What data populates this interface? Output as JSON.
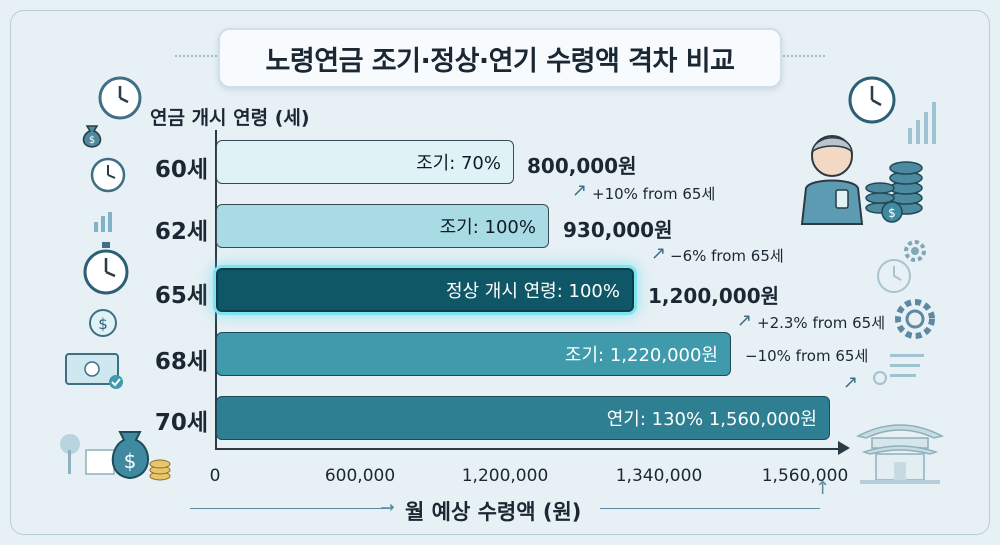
{
  "title": "노령연금 조기·정상·연기 수령액 격차 비교",
  "chart_data": {
    "type": "bar",
    "orientation": "horizontal",
    "y_axis_title": "연금 개시 연령 (세)",
    "x_axis_title": "월 예상 수령액 (원)",
    "x_ticks": [
      "0",
      "600,000",
      "1,200,000",
      "1,340,000",
      "1,560,000"
    ],
    "categories": [
      "60세",
      "62세",
      "65세",
      "68세",
      "70세"
    ],
    "values": [
      800000,
      930000,
      1200000,
      1220000,
      1560000
    ],
    "bar_labels": [
      "조기: 70%",
      "조기: 100%",
      "정상 개시 연령: 100%",
      "조기: 1,220,000원",
      "연기: 130%   1,560,000원"
    ],
    "amount_labels": [
      "800,000원",
      "930,000원",
      "1,200,000원",
      "",
      ""
    ],
    "annotations": [
      "+10% from 65세",
      "−6% from 65세",
      "+2.3% from 65세",
      "−10% from 65세"
    ],
    "highlight_category": "65세",
    "colors": [
      "#dff2f6",
      "#a9dbe4",
      "#0f5667",
      "#3f9aab",
      "#2f7f92"
    ],
    "legend": "none",
    "grid": false
  }
}
